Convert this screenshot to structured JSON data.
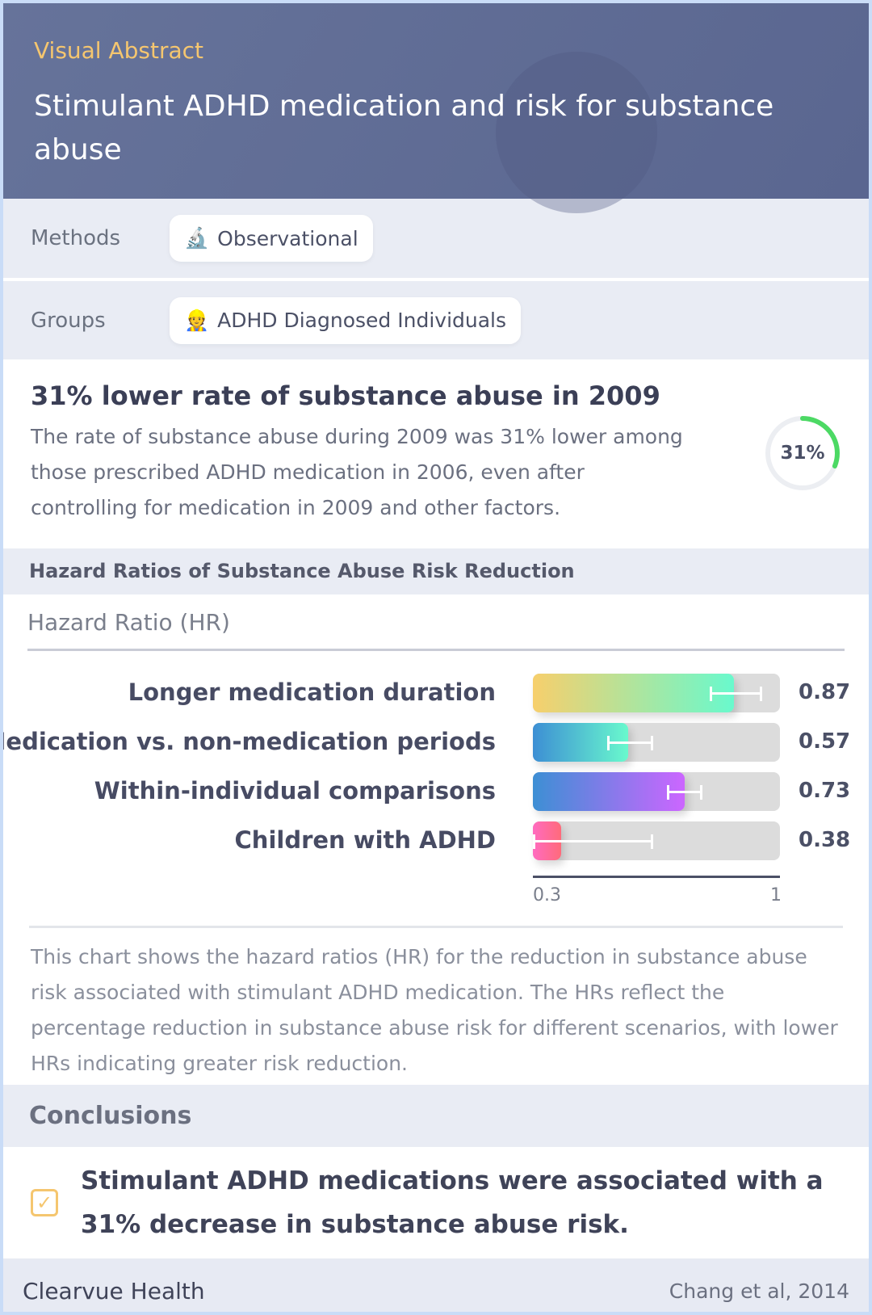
{
  "header": {
    "eyebrow": "Visual Abstract",
    "title": "Stimulant ADHD medication and risk for substance abuse"
  },
  "methods": {
    "label": "Methods",
    "chip": "Observational",
    "icon": "microscope-icon"
  },
  "groups": {
    "label": "Groups",
    "chip": "ADHD Diagnosed Individuals",
    "icon": "person-icon"
  },
  "finding": {
    "headline": "31% lower rate of substance abuse in 2009",
    "body": "The rate of substance abuse during 2009 was 31% lower among those prescribed ADHD medication in 2006, even after controlling for medication in 2009 and other factors.",
    "ring_label": "31%",
    "ring_value": 0.31
  },
  "chart_section": {
    "title": "Hazard Ratios of Substance Abuse Risk Reduction"
  },
  "chart_data": {
    "type": "bar",
    "orientation": "horizontal",
    "title": "Hazard Ratio (HR)",
    "xlim": [
      0.3,
      1
    ],
    "x_ticks": [
      "0.3",
      "1"
    ],
    "categories": [
      "Longer medication duration",
      "Medication vs. non-medication periods",
      "Within-individual comparisons",
      "Children with ADHD"
    ],
    "values": [
      0.87,
      0.57,
      0.73,
      0.38
    ],
    "value_labels": [
      "0.87",
      "0.57",
      "0.73",
      "0.38"
    ],
    "ci": [
      [
        0.8,
        0.95
      ],
      [
        0.51,
        0.64
      ],
      [
        0.68,
        0.78
      ],
      [
        0.3,
        0.64
      ]
    ],
    "gradients": [
      [
        "#f7cf6c",
        "#69f9cd"
      ],
      [
        "#3d8fd4",
        "#69f9cd"
      ],
      [
        "#3d8fd4",
        "#cc66ff"
      ],
      [
        "#ff6bc0",
        "#ff6b7a"
      ]
    ]
  },
  "chart_description": "This chart shows the hazard ratios (HR) for the reduction in substance abuse risk associated with stimulant ADHD medication. The HRs reflect the percentage reduction in substance abuse risk for different scenarios, with lower HRs indicating greater risk reduction.",
  "conclusions": {
    "title": "Conclusions",
    "items": [
      "Stimulant ADHD medications were associated with a 31% decrease in substance abuse risk."
    ]
  },
  "footer": {
    "brand": "Clearvue Health",
    "citation": "Chang et al, 2014"
  },
  "colors": {
    "header_bg": "#5f6b94",
    "accent": "#f5c66f",
    "ring": "#4cd964"
  }
}
